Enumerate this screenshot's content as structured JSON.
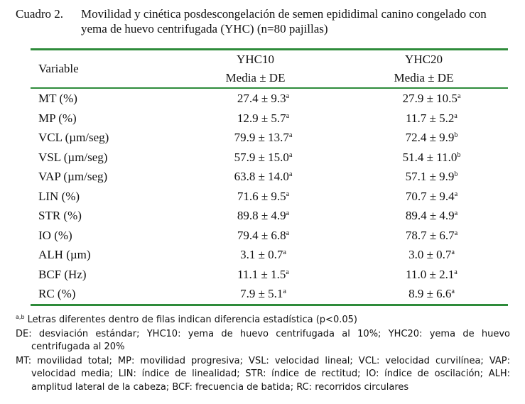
{
  "caption": {
    "label": "Cuadro 2.",
    "text": "Movilidad y cinética posdescongelación de semen epididimal canino congelado con yema de huevo centrifugada (YHC) (n=80 pajillas)"
  },
  "table": {
    "header": {
      "variable": "Variable",
      "group_a": "YHC10",
      "group_b": "YHC20",
      "stat": "Media ± DE"
    },
    "rows": [
      {
        "var": "MT (%)",
        "a": "27.4 ± 9.3",
        "a_sup": "a",
        "b": "27.9 ± 10.5",
        "b_sup": "a"
      },
      {
        "var": "MP (%)",
        "a": "12.9 ± 5.7",
        "a_sup": "a",
        "b": "11.7 ± 5.2",
        "b_sup": "a"
      },
      {
        "var": "VCL (µm/seg)",
        "a": "79.9 ± 13.7",
        "a_sup": "a",
        "b": "72.4 ± 9.9",
        "b_sup": "b"
      },
      {
        "var": "VSL (µm/seg)",
        "a": "57.9 ± 15.0",
        "a_sup": "a",
        "b": "51.4 ± 11.0",
        "b_sup": "b"
      },
      {
        "var": "VAP (µm/seg)",
        "a": "63.8 ± 14.0",
        "a_sup": "a",
        "b": "57.1 ± 9.9",
        "b_sup": "b"
      },
      {
        "var": "LIN (%)",
        "a": "71.6 ± 9.5",
        "a_sup": "a",
        "b": "70.7 ± 9.4",
        "b_sup": "a"
      },
      {
        "var": "STR (%)",
        "a": "89.8 ± 4.9",
        "a_sup": "a",
        "b": "89.4 ± 4.9",
        "b_sup": "a"
      },
      {
        "var": "IO (%)",
        "a": "79.4 ± 6.8",
        "a_sup": "a",
        "b": "78.7 ± 6.7",
        "b_sup": "a"
      },
      {
        "var": "ALH (µm)",
        "a": "3.1 ± 0.7",
        "a_sup": "a",
        "b": "3.0 ± 0.7",
        "b_sup": "a"
      },
      {
        "var": "BCF (Hz)",
        "a": "11.1 ± 1.5",
        "a_sup": "a",
        "b": "11.0 ± 2.1",
        "b_sup": "a"
      },
      {
        "var": "RC (%)",
        "a": "7.9 ± 5.1",
        "a_sup": "a",
        "b": "8.9 ± 6.6",
        "b_sup": "a"
      }
    ]
  },
  "notes": {
    "sig_sup": "a,b",
    "sig": "Letras diferentes dentro de filas indican diferencia estadística (p<0.05)",
    "de": "DE: desviación estándar; YHC10: yema de huevo centrifugada al 10%; YHC20: yema de huevo centrifugada al 20%",
    "abbr": "MT: movilidad total; MP: movilidad progresiva; VSL: velocidad lineal; VCL: velocidad curvilínea; VAP: velocidad media; LIN: índice de linealidad; STR: índice de rectitud; IO: índice de oscilación; ALH: amplitud lateral de la cabeza; BCF: frecuencia de batida; RC: recorridos circulares"
  },
  "colors": {
    "rule": "#2e8b3a",
    "text": "#111111"
  }
}
